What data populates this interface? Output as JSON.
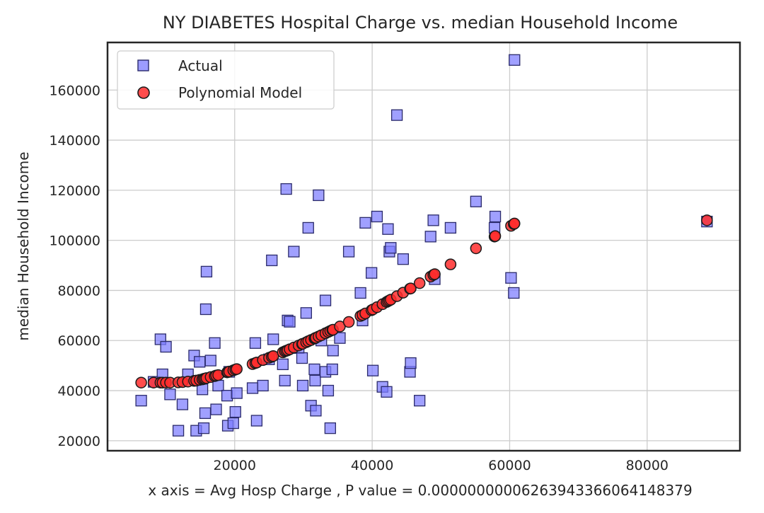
{
  "chart_data": {
    "type": "scatter",
    "title": "NY DIABETES Hospital Charge vs. median Household Income",
    "xlabel": "x axis = Avg Hosp Charge , P value = 0.0000000000626394336606414837​9",
    "ylabel": "median Household Income",
    "xlim": [
      1500,
      93500
    ],
    "ylim": [
      16000,
      179000
    ],
    "x_ticks": [
      20000,
      40000,
      60000,
      80000
    ],
    "y_ticks": [
      20000,
      40000,
      60000,
      80000,
      100000,
      120000,
      140000,
      160000
    ],
    "grid": true,
    "legend_position": "top-left",
    "colors": {
      "actual_fill": "#7b7bff",
      "actual_edge": "#2b2b6b",
      "model_fill": "#ff2d2d",
      "model_edge": "#1a1a1a",
      "grid": "#cccccc",
      "frame": "#262626"
    },
    "series": [
      {
        "name": "Actual",
        "marker": "square",
        "points": [
          [
            6400,
            36000
          ],
          [
            8200,
            43500
          ],
          [
            9200,
            60500
          ],
          [
            9500,
            46500
          ],
          [
            10000,
            57500
          ],
          [
            10600,
            38500
          ],
          [
            11800,
            24000
          ],
          [
            12400,
            34500
          ],
          [
            13200,
            46500
          ],
          [
            14100,
            54000
          ],
          [
            14400,
            24000
          ],
          [
            14900,
            51500
          ],
          [
            15300,
            40500
          ],
          [
            15500,
            25000
          ],
          [
            15700,
            31000
          ],
          [
            15900,
            87500
          ],
          [
            15800,
            72500
          ],
          [
            16500,
            52000
          ],
          [
            17100,
            59000
          ],
          [
            17300,
            32500
          ],
          [
            17600,
            42000
          ],
          [
            18900,
            38000
          ],
          [
            19000,
            26000
          ],
          [
            19200,
            47500
          ],
          [
            19800,
            27000
          ],
          [
            20100,
            31500
          ],
          [
            20300,
            39000
          ],
          [
            22600,
            41000
          ],
          [
            23000,
            59000
          ],
          [
            23200,
            28000
          ],
          [
            24100,
            42000
          ],
          [
            25000,
            52500
          ],
          [
            25400,
            92000
          ],
          [
            25600,
            60500
          ],
          [
            27000,
            50500
          ],
          [
            27300,
            44000
          ],
          [
            27500,
            120500
          ],
          [
            27700,
            68000
          ],
          [
            28000,
            67500
          ],
          [
            28600,
            95500
          ],
          [
            29300,
            57000
          ],
          [
            29800,
            53000
          ],
          [
            29900,
            42000
          ],
          [
            30400,
            71000
          ],
          [
            30700,
            105000
          ],
          [
            31100,
            34000
          ],
          [
            31700,
            44000
          ],
          [
            31600,
            48500
          ],
          [
            31800,
            32000
          ],
          [
            32200,
            118000
          ],
          [
            32600,
            60000
          ],
          [
            33200,
            76000
          ],
          [
            33200,
            47500
          ],
          [
            33600,
            40000
          ],
          [
            33900,
            25000
          ],
          [
            34200,
            48500
          ],
          [
            34300,
            56000
          ],
          [
            35300,
            61000
          ],
          [
            36600,
            95500
          ],
          [
            38300,
            79000
          ],
          [
            38600,
            68000
          ],
          [
            39000,
            107000
          ],
          [
            39900,
            87000
          ],
          [
            40100,
            48000
          ],
          [
            40700,
            109500
          ],
          [
            41500,
            41500
          ],
          [
            42100,
            39500
          ],
          [
            42300,
            104500
          ],
          [
            42500,
            95500
          ],
          [
            42700,
            97000
          ],
          [
            43600,
            150000
          ],
          [
            44500,
            92500
          ],
          [
            45500,
            47500
          ],
          [
            45600,
            51000
          ],
          [
            46900,
            36000
          ],
          [
            48500,
            101500
          ],
          [
            48900,
            108000
          ],
          [
            49100,
            84500
          ],
          [
            51400,
            105000
          ],
          [
            55100,
            115500
          ],
          [
            57800,
            105000
          ],
          [
            57900,
            109500
          ],
          [
            60200,
            85000
          ],
          [
            60600,
            79000
          ],
          [
            60700,
            172000
          ],
          [
            88700,
            107500
          ]
        ]
      },
      {
        "name": "Polynomial Model",
        "marker": "circle",
        "points": [
          [
            6400,
            43200
          ],
          [
            8200,
            43200
          ],
          [
            9200,
            43200
          ],
          [
            9500,
            43200
          ],
          [
            10000,
            43200
          ],
          [
            10600,
            43200
          ],
          [
            11800,
            43300
          ],
          [
            12400,
            43400
          ],
          [
            13200,
            43600
          ],
          [
            14100,
            43900
          ],
          [
            14400,
            44000
          ],
          [
            14900,
            44300
          ],
          [
            15300,
            44500
          ],
          [
            15500,
            44700
          ],
          [
            15700,
            44800
          ],
          [
            15900,
            45000
          ],
          [
            16500,
            45400
          ],
          [
            17100,
            45800
          ],
          [
            17300,
            46000
          ],
          [
            17600,
            46200
          ],
          [
            18900,
            47300
          ],
          [
            19000,
            47400
          ],
          [
            19200,
            47600
          ],
          [
            19800,
            48100
          ],
          [
            20100,
            48400
          ],
          [
            20300,
            48600
          ],
          [
            22600,
            50600
          ],
          [
            23000,
            51000
          ],
          [
            23200,
            51200
          ],
          [
            24100,
            52200
          ],
          [
            25000,
            53100
          ],
          [
            25400,
            53500
          ],
          [
            25600,
            53800
          ],
          [
            27000,
            55300
          ],
          [
            27300,
            55700
          ],
          [
            27500,
            55900
          ],
          [
            27700,
            56100
          ],
          [
            28000,
            56500
          ],
          [
            28600,
            57200
          ],
          [
            29300,
            58000
          ],
          [
            29800,
            58600
          ],
          [
            29900,
            58700
          ],
          [
            30400,
            59300
          ],
          [
            30700,
            59700
          ],
          [
            31100,
            60200
          ],
          [
            31600,
            60800
          ],
          [
            31700,
            60900
          ],
          [
            31800,
            61100
          ],
          [
            32200,
            61600
          ],
          [
            32600,
            62100
          ],
          [
            33200,
            62900
          ],
          [
            33600,
            63400
          ],
          [
            33900,
            63800
          ],
          [
            34200,
            64200
          ],
          [
            34300,
            64300
          ],
          [
            35300,
            65600
          ],
          [
            36600,
            67400
          ],
          [
            38300,
            69800
          ],
          [
            38600,
            70200
          ],
          [
            39000,
            70800
          ],
          [
            39900,
            72100
          ],
          [
            40100,
            72400
          ],
          [
            40700,
            73300
          ],
          [
            41500,
            74500
          ],
          [
            42100,
            75400
          ],
          [
            42300,
            75700
          ],
          [
            42500,
            76000
          ],
          [
            42700,
            76300
          ],
          [
            43600,
            77700
          ],
          [
            44500,
            79100
          ],
          [
            45500,
            80700
          ],
          [
            45600,
            80800
          ],
          [
            46900,
            82900
          ],
          [
            48500,
            85500
          ],
          [
            48900,
            86200
          ],
          [
            49100,
            86500
          ],
          [
            51400,
            90400
          ],
          [
            55100,
            96800
          ],
          [
            57800,
            101500
          ],
          [
            57900,
            101700
          ],
          [
            60200,
            105800
          ],
          [
            60600,
            106500
          ],
          [
            60700,
            106700
          ],
          [
            88700,
            108000
          ]
        ]
      }
    ]
  }
}
